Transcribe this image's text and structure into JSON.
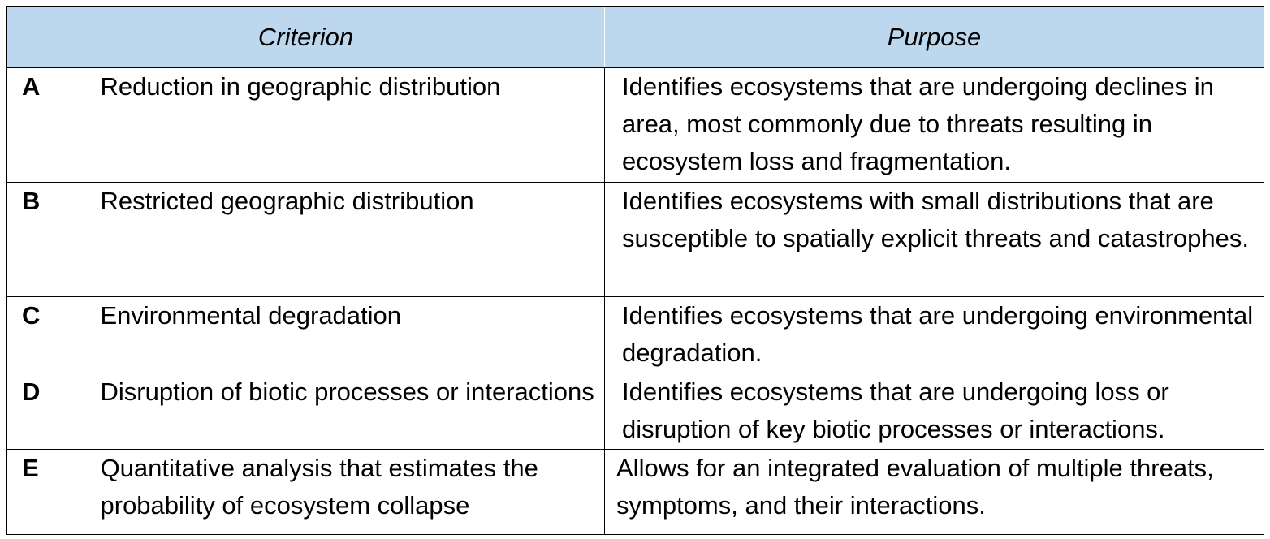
{
  "table": {
    "header": {
      "criterion": "Criterion",
      "purpose": "Purpose"
    },
    "rows": [
      {
        "letter": "A",
        "criterion": "Reduction in geographic distribution",
        "purpose": "Identifies ecosystems that are undergoing declines in area, most commonly due to threats resulting in ecosystem loss and fragmentation."
      },
      {
        "letter": "B",
        "criterion": "Restricted geographic distribution",
        "purpose": "Identifies ecosystems with small distributions that are susceptible to spatially explicit threats and catastrophes."
      },
      {
        "letter": "C",
        "criterion": "Environmental degradation",
        "purpose": "Identifies ecosystems that are undergoing environmental degradation."
      },
      {
        "letter": "D",
        "criterion": "Disruption of biotic processes or interactions",
        "purpose": "Identifies ecosystems that are undergoing loss or disruption of key biotic processes or interactions."
      },
      {
        "letter": "E",
        "criterion": "Quantitative analysis that estimates the probability of ecosystem collapse",
        "purpose": "Allows for an integrated evaluation of multiple threats, symptoms, and their interactions."
      }
    ]
  },
  "colors": {
    "header_background": "#bdd7ee",
    "border": "#000000",
    "text": "#000000"
  }
}
